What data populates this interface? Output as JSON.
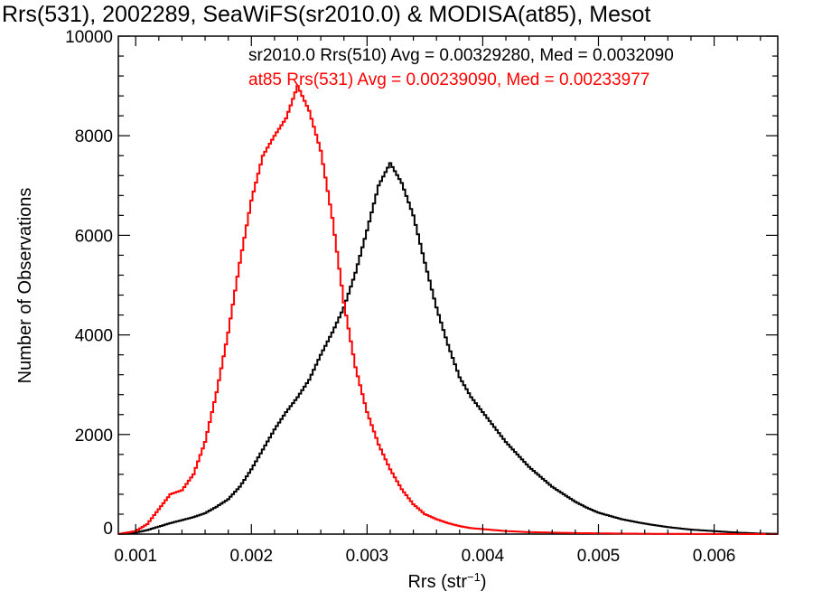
{
  "chart_data": {
    "type": "histogram",
    "title": "Rrs(531), 2002289, SeaWiFS(sr2010.0) & MODISA(at85), Mesot",
    "xlabel_main": "Rrs (str",
    "xlabel_sup": "−1",
    "xlabel_close": ")",
    "ylabel": "Number of Observations",
    "xlim": [
      0.00085,
      0.00655
    ],
    "ylim": [
      0,
      10000
    ],
    "x_ticks": [
      0.001,
      0.002,
      0.003,
      0.004,
      0.005,
      0.006
    ],
    "x_tick_labels": [
      "0.001",
      "0.002",
      "0.003",
      "0.004",
      "0.005",
      "0.006"
    ],
    "y_ticks": [
      0,
      2000,
      4000,
      6000,
      8000,
      10000
    ],
    "y_tick_labels": [
      "0",
      "2000",
      "4000",
      "6000",
      "8000",
      "10000"
    ],
    "grid": false,
    "annotations": [
      {
        "text": "sr2010.0 Rrs(510) Avg = 0.00329280, Med = 0.0032090",
        "color": "#000000"
      },
      {
        "text": "at85 Rrs(531) Avg = 0.00239090, Med = 0.00233977",
        "color": "#ff0000"
      }
    ],
    "series": [
      {
        "color": "#000000",
        "points": [
          [
            0.00085,
            0
          ],
          [
            0.001,
            30
          ],
          [
            0.0011,
            80
          ],
          [
            0.0012,
            150
          ],
          [
            0.0013,
            220
          ],
          [
            0.0014,
            280
          ],
          [
            0.0015,
            340
          ],
          [
            0.0016,
            420
          ],
          [
            0.0017,
            550
          ],
          [
            0.0018,
            700
          ],
          [
            0.0019,
            950
          ],
          [
            0.002,
            1300
          ],
          [
            0.0021,
            1700
          ],
          [
            0.0022,
            2100
          ],
          [
            0.0023,
            2450
          ],
          [
            0.0024,
            2750
          ],
          [
            0.0025,
            3100
          ],
          [
            0.0026,
            3600
          ],
          [
            0.0027,
            4050
          ],
          [
            0.0028,
            4550
          ],
          [
            0.0029,
            5250
          ],
          [
            0.003,
            6100
          ],
          [
            0.0031,
            7000
          ],
          [
            0.0032,
            7450
          ],
          [
            0.0033,
            7050
          ],
          [
            0.0034,
            6400
          ],
          [
            0.0035,
            5450
          ],
          [
            0.0036,
            4550
          ],
          [
            0.0037,
            3800
          ],
          [
            0.0038,
            3150
          ],
          [
            0.0039,
            2750
          ],
          [
            0.004,
            2450
          ],
          [
            0.0041,
            2150
          ],
          [
            0.0042,
            1850
          ],
          [
            0.0043,
            1600
          ],
          [
            0.0044,
            1350
          ],
          [
            0.0045,
            1150
          ],
          [
            0.0046,
            950
          ],
          [
            0.0047,
            800
          ],
          [
            0.0048,
            650
          ],
          [
            0.0049,
            530
          ],
          [
            0.005,
            430
          ],
          [
            0.0052,
            300
          ],
          [
            0.0054,
            210
          ],
          [
            0.0056,
            140
          ],
          [
            0.0058,
            90
          ],
          [
            0.006,
            60
          ],
          [
            0.0062,
            30
          ],
          [
            0.0064,
            10
          ],
          [
            0.00655,
            5
          ]
        ]
      },
      {
        "color": "#ff0000",
        "points": [
          [
            0.00085,
            0
          ],
          [
            0.001,
            60
          ],
          [
            0.0011,
            200
          ],
          [
            0.0012,
            500
          ],
          [
            0.0013,
            800
          ],
          [
            0.0014,
            880
          ],
          [
            0.0015,
            1200
          ],
          [
            0.0016,
            1850
          ],
          [
            0.0017,
            2850
          ],
          [
            0.0018,
            4050
          ],
          [
            0.0019,
            5450
          ],
          [
            0.002,
            6700
          ],
          [
            0.0021,
            7600
          ],
          [
            0.0022,
            8000
          ],
          [
            0.0023,
            8350
          ],
          [
            0.0024,
            9000
          ],
          [
            0.0025,
            8500
          ],
          [
            0.0026,
            7700
          ],
          [
            0.0027,
            6350
          ],
          [
            0.0028,
            4650
          ],
          [
            0.0029,
            3350
          ],
          [
            0.003,
            2450
          ],
          [
            0.0031,
            1800
          ],
          [
            0.0032,
            1300
          ],
          [
            0.0033,
            900
          ],
          [
            0.0034,
            600
          ],
          [
            0.0035,
            400
          ],
          [
            0.0036,
            300
          ],
          [
            0.0037,
            220
          ],
          [
            0.0038,
            160
          ],
          [
            0.0039,
            120
          ],
          [
            0.004,
            100
          ],
          [
            0.0041,
            80
          ],
          [
            0.0042,
            60
          ],
          [
            0.0043,
            50
          ],
          [
            0.0044,
            40
          ],
          [
            0.0046,
            30
          ],
          [
            0.0048,
            20
          ],
          [
            0.005,
            15
          ],
          [
            0.0052,
            10
          ],
          [
            0.0055,
            5
          ],
          [
            0.006,
            2
          ],
          [
            0.00655,
            0
          ]
        ]
      }
    ]
  }
}
